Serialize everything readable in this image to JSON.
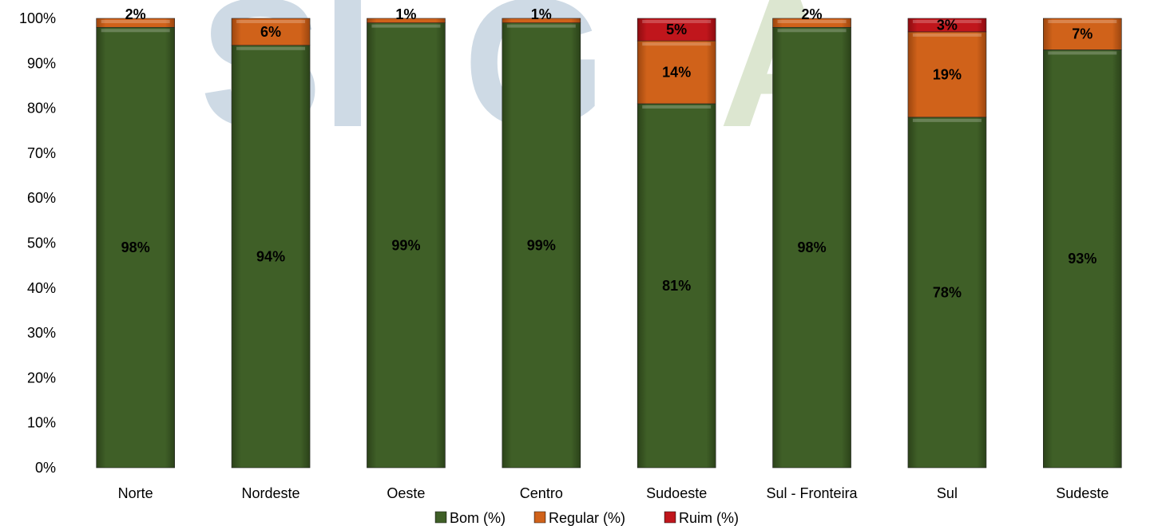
{
  "chart_data": {
    "type": "bar",
    "stacked": true,
    "categories": [
      "Norte",
      "Nordeste",
      "Oeste",
      "Centro",
      "Sudoeste",
      "Sul - Fronteira",
      "Sul",
      "Sudeste"
    ],
    "series": [
      {
        "name": "Bom (%)",
        "color": "#3f5f27",
        "values": [
          98,
          94,
          99,
          99,
          81,
          98,
          78,
          93
        ],
        "labels": [
          "98%",
          "94%",
          "99%",
          "99%",
          "81%",
          "98%",
          "78%",
          "93%"
        ]
      },
      {
        "name": "Regular (%)",
        "color": "#d0621a",
        "values": [
          2,
          6,
          1,
          1,
          14,
          2,
          19,
          7
        ],
        "labels": [
          "2%",
          "6%",
          "1%",
          "1%",
          "14%",
          "2%",
          "19%",
          "7%"
        ]
      },
      {
        "name": "Ruim (%)",
        "color": "#c0161c",
        "values": [
          0,
          0,
          0,
          0,
          5,
          0,
          3,
          0
        ],
        "labels": [
          "",
          "",
          "",
          "",
          "5%",
          "",
          "3%",
          ""
        ]
      }
    ],
    "yticks": [
      "0%",
      "10%",
      "20%",
      "30%",
      "40%",
      "50%",
      "60%",
      "70%",
      "80%",
      "90%",
      "100%"
    ],
    "ylim": [
      0,
      100
    ],
    "grid": false,
    "legend_position": "bottom",
    "title": "",
    "xlabel": "",
    "ylabel": ""
  },
  "watermark": {
    "left": "SI",
    "green": "A",
    "colors": [
      "#c9d7e3",
      "#d9e4cc"
    ]
  }
}
